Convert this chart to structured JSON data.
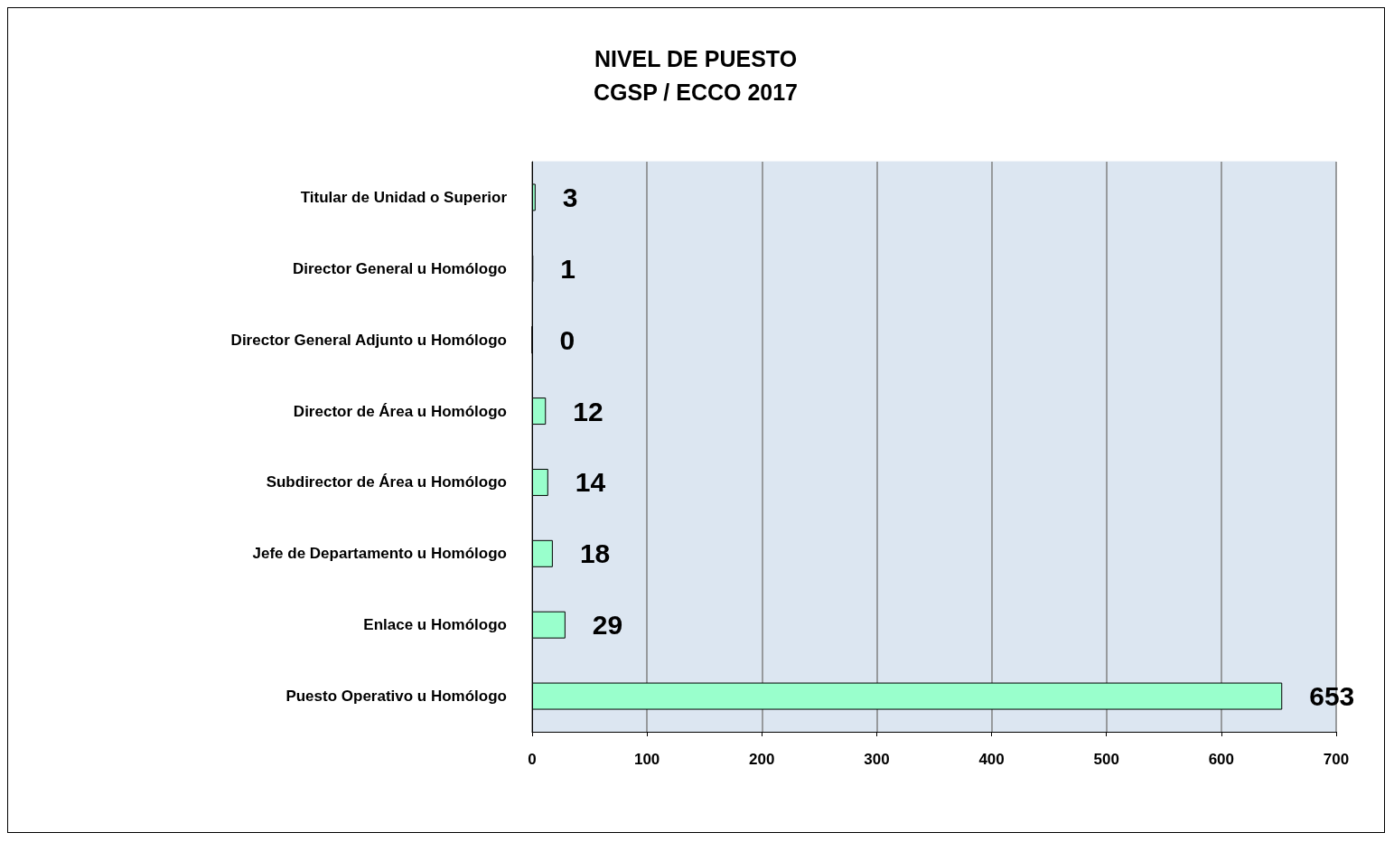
{
  "chart_data": {
    "type": "bar",
    "orientation": "horizontal",
    "title": "NIVEL DE PUESTO",
    "subtitle": "CGSP / ECCO 2017",
    "categories": [
      "Titular de Unidad o Superior",
      "Director General u Homólogo",
      "Director General Adjunto u Homólogo",
      "Director de Área u Homólogo",
      "Subdirector de Área u Homólogo",
      "Jefe de Departamento u Homólogo",
      "Enlace u Homólogo",
      "Puesto Operativo u Homólogo"
    ],
    "values": [
      3,
      1,
      0,
      12,
      14,
      18,
      29,
      653
    ],
    "color": "#99ffcc",
    "data_labels": true,
    "xlim": [
      0,
      700
    ],
    "xticks": [
      0,
      100,
      200,
      300,
      400,
      500,
      600,
      700
    ],
    "grid": "x"
  }
}
